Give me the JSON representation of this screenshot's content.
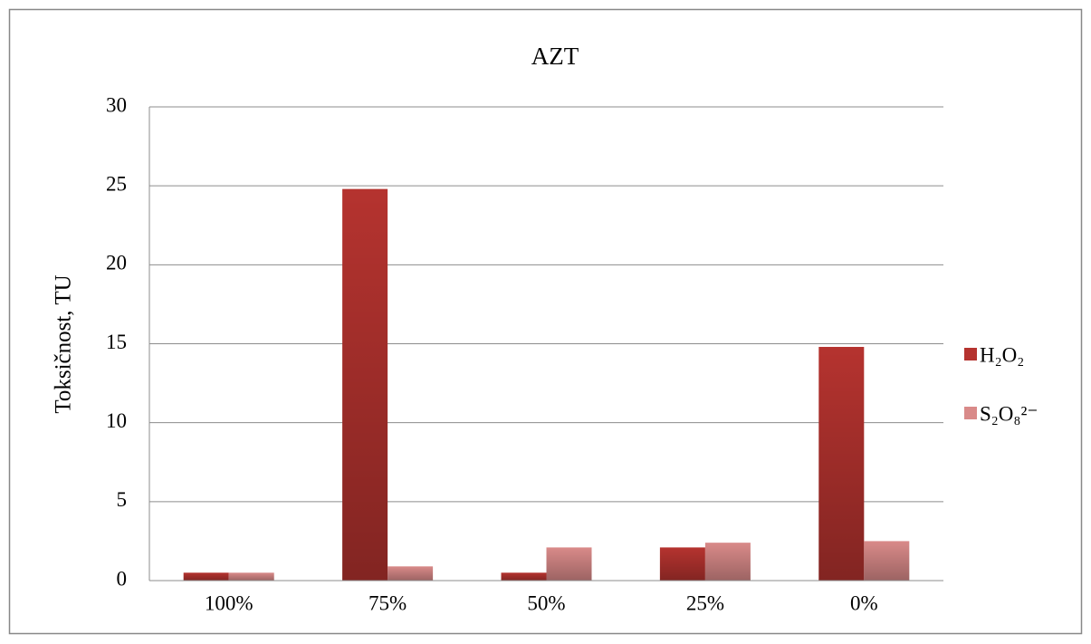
{
  "chart_data": {
    "type": "bar",
    "title": "AZT",
    "y_label": "Toksičnost, TU",
    "categories": [
      "100%",
      "75%",
      "50%",
      "25%",
      "0%"
    ],
    "series": [
      {
        "name": "H₂O₂",
        "color": "#b5332f",
        "values": [
          0.5,
          24.8,
          0.5,
          2.1,
          14.8
        ]
      },
      {
        "name": "S₂O₈²⁻",
        "color": "#d98a89",
        "values": [
          0.5,
          0.9,
          2.1,
          2.4,
          2.5
        ]
      }
    ],
    "ylim": [
      0,
      30
    ],
    "yticks": [
      0,
      5,
      10,
      15,
      20,
      25,
      30
    ],
    "grid": true,
    "legend": "right"
  }
}
